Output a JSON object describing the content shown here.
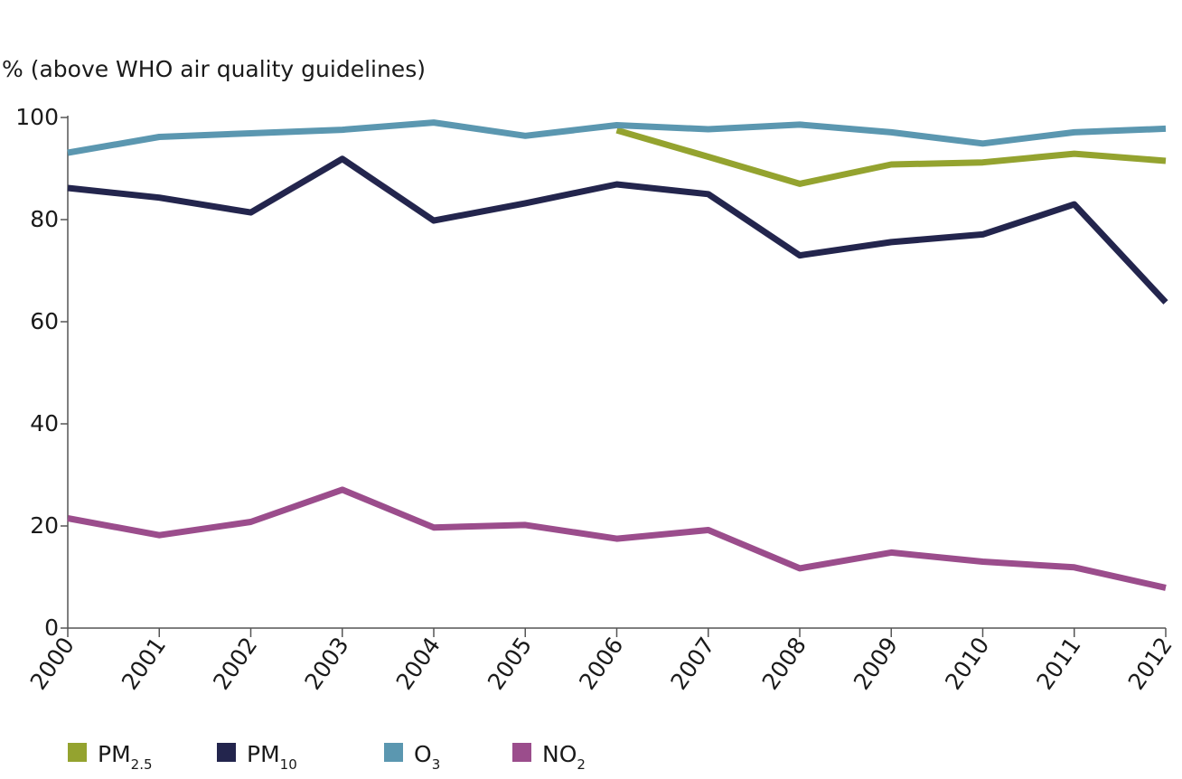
{
  "chart_data": {
    "type": "line",
    "ylabel": "%  (above WHO air quality guidelines)",
    "ylim": [
      0,
      100
    ],
    "yticks": [
      "0",
      "20",
      "40",
      "60",
      "80",
      "100"
    ],
    "x": [
      "2000",
      "2001",
      "2002",
      "2003",
      "2004",
      "2005",
      "2006",
      "2007",
      "2008",
      "2009",
      "2010",
      "2011",
      "2012"
    ],
    "grid": false,
    "legend_position": "bottom",
    "series": [
      {
        "key": "pm25",
        "label_main": "PM",
        "label_sub": "2.5",
        "color": "#94a32f",
        "values": [
          null,
          null,
          null,
          null,
          null,
          null,
          97.5,
          92.3,
          87.0,
          90.8,
          91.2,
          92.9,
          91.5
        ]
      },
      {
        "key": "pm10",
        "label_main": "PM",
        "label_sub": "10",
        "color": "#23254d",
        "values": [
          86.2,
          84.3,
          81.4,
          91.9,
          79.8,
          83.2,
          86.9,
          85.0,
          73.0,
          75.6,
          77.1,
          83.0,
          63.8
        ]
      },
      {
        "key": "o3",
        "label_main": "O",
        "label_sub": "3",
        "color": "#5b97b0",
        "values": [
          93.1,
          96.2,
          96.9,
          97.6,
          99.0,
          96.4,
          98.5,
          97.7,
          98.6,
          97.1,
          94.9,
          97.1,
          97.8
        ]
      },
      {
        "key": "no2",
        "label_main": "NO",
        "label_sub": "2",
        "color": "#9b4d8c",
        "values": [
          21.5,
          18.2,
          20.8,
          27.1,
          19.7,
          20.2,
          17.5,
          19.2,
          11.7,
          14.8,
          13.0,
          11.9,
          7.9
        ]
      }
    ]
  }
}
